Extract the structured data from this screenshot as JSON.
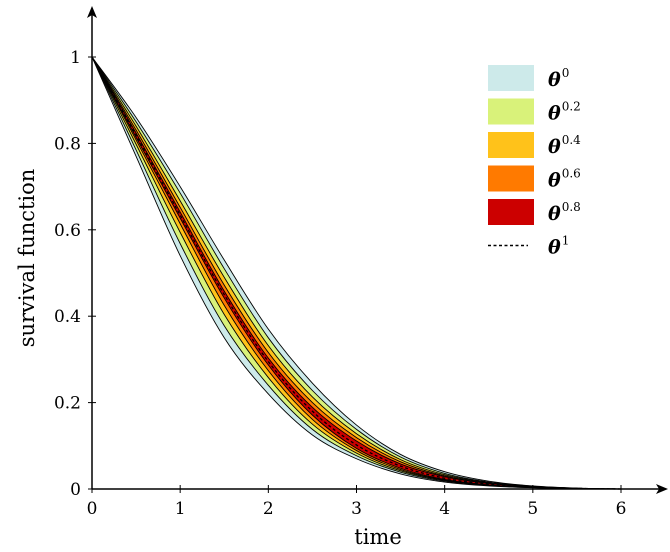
{
  "chart_data": {
    "type": "area",
    "title": "",
    "xlabel": "time",
    "ylabel": "survival function",
    "xlim": [
      0,
      6
    ],
    "ylim": [
      0,
      1.05
    ],
    "xticks": [
      "0",
      "1",
      "2",
      "3",
      "4",
      "5",
      "6"
    ],
    "yticks": [
      "0",
      "0.2",
      "0.4",
      "0.6",
      "0.8",
      "1"
    ],
    "grid": false,
    "legend_position": "top-right",
    "x": [
      0,
      0.5,
      1,
      1.5,
      2,
      2.5,
      3,
      3.5,
      4,
      4.5,
      5,
      5.5,
      6
    ],
    "series": [
      {
        "name": "θ^0",
        "label_base": "θ",
        "label_sup": "0",
        "color": "#cdeaea",
        "lower": [
          1,
          0.77,
          0.54,
          0.35,
          0.22,
          0.125,
          0.07,
          0.035,
          0.016,
          0.007,
          0.003,
          0.001,
          0
        ],
        "upper": [
          1,
          0.86,
          0.7,
          0.53,
          0.37,
          0.245,
          0.148,
          0.08,
          0.04,
          0.018,
          0.007,
          0.002,
          0
        ]
      },
      {
        "name": "θ^0.2",
        "label_base": "θ",
        "label_sup": "0.2",
        "color": "#d9f27a",
        "lower": [
          1,
          0.785,
          0.568,
          0.378,
          0.24,
          0.138,
          0.077,
          0.039,
          0.018,
          0.008,
          0.0033,
          0.0011,
          0
        ],
        "upper": [
          1,
          0.85,
          0.685,
          0.51,
          0.35,
          0.228,
          0.138,
          0.074,
          0.036,
          0.016,
          0.0065,
          0.0019,
          0
        ]
      },
      {
        "name": "θ^0.4",
        "label_base": "θ",
        "label_sup": "0.4",
        "color": "#ffc21a",
        "lower": [
          1,
          0.798,
          0.594,
          0.404,
          0.258,
          0.15,
          0.083,
          0.042,
          0.0195,
          0.0085,
          0.0035,
          0.0012,
          0
        ],
        "upper": [
          1,
          0.84,
          0.667,
          0.49,
          0.332,
          0.213,
          0.128,
          0.068,
          0.033,
          0.0148,
          0.006,
          0.0018,
          0
        ]
      },
      {
        "name": "θ^0.6",
        "label_base": "θ",
        "label_sup": "0.6",
        "color": "#ff7a00",
        "lower": [
          1,
          0.808,
          0.614,
          0.425,
          0.274,
          0.161,
          0.089,
          0.045,
          0.0208,
          0.009,
          0.0037,
          0.0013,
          0
        ],
        "upper": [
          1,
          0.831,
          0.652,
          0.472,
          0.316,
          0.2,
          0.119,
          0.063,
          0.0305,
          0.0138,
          0.0056,
          0.0017,
          0
        ]
      },
      {
        "name": "θ^0.8",
        "label_base": "θ",
        "label_sup": "0.8",
        "color": "#cc0000",
        "lower": [
          1,
          0.814,
          0.627,
          0.442,
          0.287,
          0.171,
          0.094,
          0.048,
          0.022,
          0.0095,
          0.0039,
          0.0013,
          0
        ],
        "upper": [
          1,
          0.824,
          0.641,
          0.458,
          0.303,
          0.189,
          0.111,
          0.058,
          0.0285,
          0.0128,
          0.0052,
          0.0016,
          0
        ]
      },
      {
        "name": "θ^1",
        "label_base": "θ",
        "label_sup": "1",
        "color": "#000000",
        "style": "dashed",
        "values": [
          1,
          0.819,
          0.634,
          0.45,
          0.295,
          0.18,
          0.102,
          0.053,
          0.025,
          0.011,
          0.0045,
          0.0015,
          0
        ]
      }
    ]
  }
}
